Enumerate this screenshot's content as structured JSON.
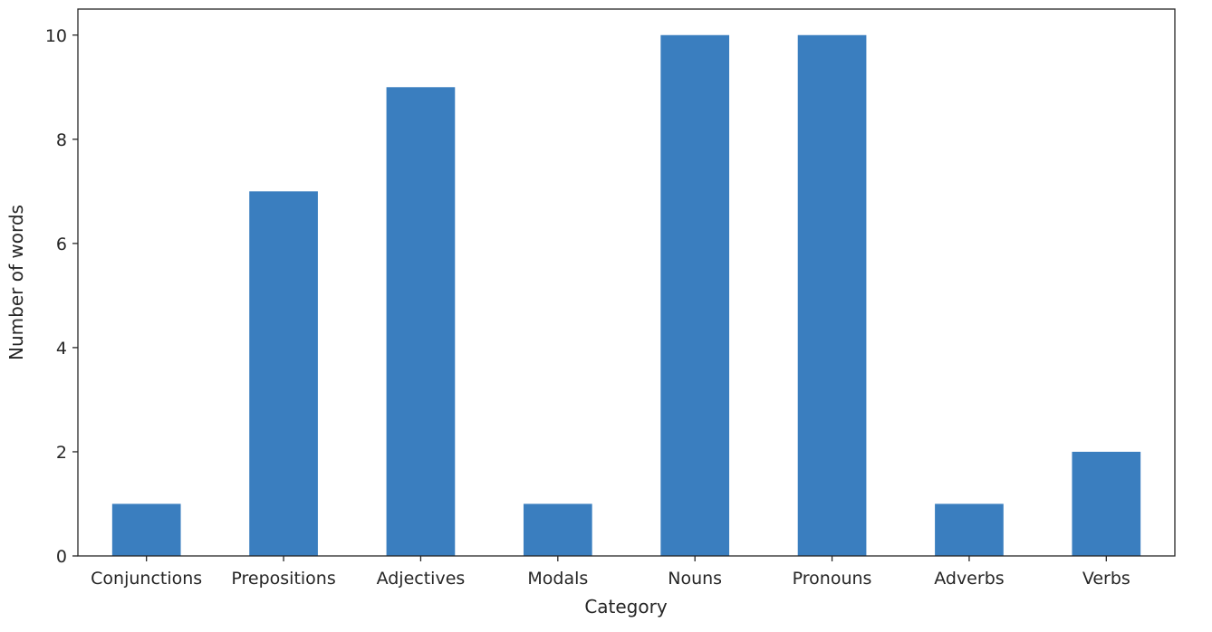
{
  "chart_data": {
    "type": "bar",
    "categories": [
      "Conjunctions",
      "Prepositions",
      "Adjectives",
      "Modals",
      "Nouns",
      "Pronouns",
      "Adverbs",
      "Verbs"
    ],
    "values": [
      1,
      7,
      9,
      1,
      10,
      10,
      1,
      2
    ],
    "xlabel": "Category",
    "ylabel": "Number of words",
    "ylim": [
      0,
      10.5
    ],
    "yticks": [
      0,
      2,
      4,
      6,
      8,
      10
    ],
    "grid": false,
    "legend": "none",
    "bar_color": "#3a7ebf"
  }
}
